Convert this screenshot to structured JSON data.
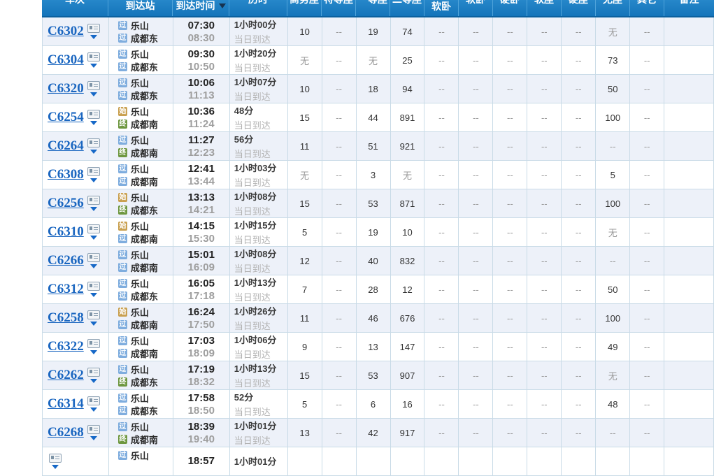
{
  "header": {
    "train": "车次",
    "station": "到达站",
    "time": "到达时间",
    "duration": "历时",
    "seats": [
      "商务座",
      "特等座",
      "一等座",
      "二等座",
      "高级\n软卧",
      "软卧",
      "硬卧",
      "软座",
      "硬座",
      "无座",
      "其它"
    ],
    "remark": "备注"
  },
  "colors": {
    "header_gradient_top": "#3a9cdb",
    "header_gradient_bottom": "#1474ba",
    "header_border": "#0b609e",
    "link_blue": "#1a66c0",
    "pass_icon_bg": "#7fadde",
    "start_icon_bg": "#c9a050",
    "end_icon_bg": "#6e9740",
    "alt_row_bg": "#edf1f9",
    "grid_line": "#c9dbe7"
  },
  "rows": [
    {
      "train_no": "C6302",
      "from": {
        "icon": "过",
        "name": "乐山"
      },
      "to": {
        "icon": "过",
        "name": "成都东"
      },
      "depart": "07:30",
      "arrive": "08:30",
      "duration": "1小时00分",
      "arrival_note": "当日到达",
      "seats": [
        "10",
        "--",
        "19",
        "74",
        "--",
        "--",
        "--",
        "--",
        "--",
        "无",
        "--"
      ],
      "remark": ""
    },
    {
      "train_no": "C6304",
      "from": {
        "icon": "过",
        "name": "乐山"
      },
      "to": {
        "icon": "过",
        "name": "成都东"
      },
      "depart": "09:30",
      "arrive": "10:50",
      "duration": "1小时20分",
      "arrival_note": "当日到达",
      "seats": [
        "无",
        "--",
        "无",
        "25",
        "--",
        "--",
        "--",
        "--",
        "--",
        "73",
        "--"
      ],
      "remark": ""
    },
    {
      "train_no": "C6320",
      "from": {
        "icon": "过",
        "name": "乐山"
      },
      "to": {
        "icon": "过",
        "name": "成都东"
      },
      "depart": "10:06",
      "arrive": "11:13",
      "duration": "1小时07分",
      "arrival_note": "当日到达",
      "seats": [
        "10",
        "--",
        "18",
        "94",
        "--",
        "--",
        "--",
        "--",
        "--",
        "50",
        "--"
      ],
      "remark": ""
    },
    {
      "train_no": "C6254",
      "from": {
        "icon": "始",
        "name": "乐山"
      },
      "to": {
        "icon": "终",
        "name": "成都南"
      },
      "depart": "10:36",
      "arrive": "11:24",
      "duration": "48分",
      "arrival_note": "当日到达",
      "seats": [
        "15",
        "--",
        "44",
        "891",
        "--",
        "--",
        "--",
        "--",
        "--",
        "100",
        "--"
      ],
      "remark": ""
    },
    {
      "train_no": "C6264",
      "from": {
        "icon": "过",
        "name": "乐山"
      },
      "to": {
        "icon": "终",
        "name": "成都南"
      },
      "depart": "11:27",
      "arrive": "12:23",
      "duration": "56分",
      "arrival_note": "当日到达",
      "seats": [
        "11",
        "--",
        "51",
        "921",
        "--",
        "--",
        "--",
        "--",
        "--",
        "--",
        "--"
      ],
      "remark": ""
    },
    {
      "train_no": "C6308",
      "from": {
        "icon": "过",
        "name": "乐山"
      },
      "to": {
        "icon": "过",
        "name": "成都南"
      },
      "depart": "12:41",
      "arrive": "13:44",
      "duration": "1小时03分",
      "arrival_note": "当日到达",
      "seats": [
        "无",
        "--",
        "3",
        "无",
        "--",
        "--",
        "--",
        "--",
        "--",
        "5",
        "--"
      ],
      "remark": ""
    },
    {
      "train_no": "C6256",
      "from": {
        "icon": "始",
        "name": "乐山"
      },
      "to": {
        "icon": "终",
        "name": "成都东"
      },
      "depart": "13:13",
      "arrive": "14:21",
      "duration": "1小时08分",
      "arrival_note": "当日到达",
      "seats": [
        "15",
        "--",
        "53",
        "871",
        "--",
        "--",
        "--",
        "--",
        "--",
        "100",
        "--"
      ],
      "remark": ""
    },
    {
      "train_no": "C6310",
      "from": {
        "icon": "始",
        "name": "乐山"
      },
      "to": {
        "icon": "过",
        "name": "成都南"
      },
      "depart": "14:15",
      "arrive": "15:30",
      "duration": "1小时15分",
      "arrival_note": "当日到达",
      "seats": [
        "5",
        "--",
        "19",
        "10",
        "--",
        "--",
        "--",
        "--",
        "--",
        "无",
        "--"
      ],
      "remark": ""
    },
    {
      "train_no": "C6266",
      "from": {
        "icon": "过",
        "name": "乐山"
      },
      "to": {
        "icon": "过",
        "name": "成都南"
      },
      "depart": "15:01",
      "arrive": "16:09",
      "duration": "1小时08分",
      "arrival_note": "当日到达",
      "seats": [
        "12",
        "--",
        "40",
        "832",
        "--",
        "--",
        "--",
        "--",
        "--",
        "--",
        "--"
      ],
      "remark": ""
    },
    {
      "train_no": "C6312",
      "from": {
        "icon": "过",
        "name": "乐山"
      },
      "to": {
        "icon": "过",
        "name": "成都东"
      },
      "depart": "16:05",
      "arrive": "17:18",
      "duration": "1小时13分",
      "arrival_note": "当日到达",
      "seats": [
        "7",
        "--",
        "28",
        "12",
        "--",
        "--",
        "--",
        "--",
        "--",
        "50",
        "--"
      ],
      "remark": ""
    },
    {
      "train_no": "C6258",
      "from": {
        "icon": "始",
        "name": "乐山"
      },
      "to": {
        "icon": "过",
        "name": "成都南"
      },
      "depart": "16:24",
      "arrive": "17:50",
      "duration": "1小时26分",
      "arrival_note": "当日到达",
      "seats": [
        "11",
        "--",
        "46",
        "676",
        "--",
        "--",
        "--",
        "--",
        "--",
        "100",
        "--"
      ],
      "remark": ""
    },
    {
      "train_no": "C6322",
      "from": {
        "icon": "过",
        "name": "乐山"
      },
      "to": {
        "icon": "过",
        "name": "成都南"
      },
      "depart": "17:03",
      "arrive": "18:09",
      "duration": "1小时06分",
      "arrival_note": "当日到达",
      "seats": [
        "9",
        "--",
        "13",
        "147",
        "--",
        "--",
        "--",
        "--",
        "--",
        "49",
        "--"
      ],
      "remark": ""
    },
    {
      "train_no": "C6262",
      "from": {
        "icon": "过",
        "name": "乐山"
      },
      "to": {
        "icon": "终",
        "name": "成都东"
      },
      "depart": "17:19",
      "arrive": "18:32",
      "duration": "1小时13分",
      "arrival_note": "当日到达",
      "seats": [
        "15",
        "--",
        "53",
        "907",
        "--",
        "--",
        "--",
        "--",
        "--",
        "无",
        "--"
      ],
      "remark": ""
    },
    {
      "train_no": "C6314",
      "from": {
        "icon": "过",
        "name": "乐山"
      },
      "to": {
        "icon": "过",
        "name": "成都东"
      },
      "depart": "17:58",
      "arrive": "18:50",
      "duration": "52分",
      "arrival_note": "当日到达",
      "seats": [
        "5",
        "--",
        "6",
        "16",
        "--",
        "--",
        "--",
        "--",
        "--",
        "48",
        "--"
      ],
      "remark": ""
    },
    {
      "train_no": "C6268",
      "from": {
        "icon": "过",
        "name": "乐山"
      },
      "to": {
        "icon": "终",
        "name": "成都南"
      },
      "depart": "18:39",
      "arrive": "19:40",
      "duration": "1小时01分",
      "arrival_note": "当日到达",
      "seats": [
        "13",
        "--",
        "42",
        "917",
        "--",
        "--",
        "--",
        "--",
        "--",
        "--",
        "--"
      ],
      "remark": ""
    },
    {
      "train_no": "",
      "from": {
        "icon": "过",
        "name": "乐山"
      },
      "to": {
        "icon": "",
        "name": ""
      },
      "depart": "18:57",
      "arrive": "",
      "duration": "1小时01分",
      "arrival_note": "",
      "seats": [
        "",
        "",
        "",
        "",
        "",
        "",
        "",
        "",
        "",
        "",
        ""
      ],
      "remark": ""
    }
  ]
}
